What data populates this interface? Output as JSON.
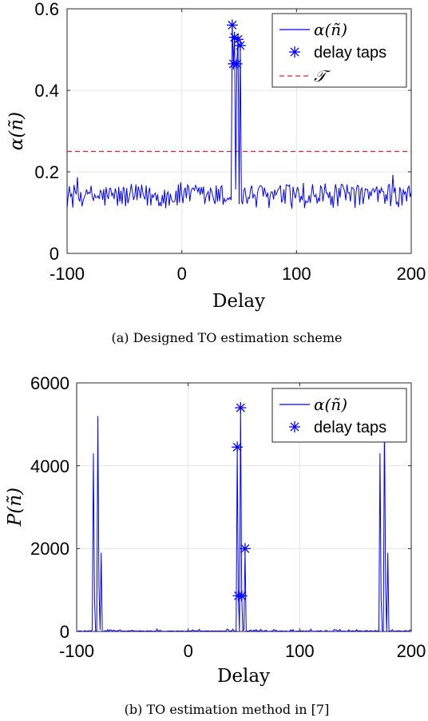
{
  "chart_data": [
    {
      "type": "line",
      "caption": "(a) Designed TO estimation scheme",
      "xlabel": "Delay",
      "ylabel": "α(ñ)",
      "xlim": [
        -100,
        200
      ],
      "ylim": [
        0,
        0.6
      ],
      "xticks": [
        -100,
        0,
        100,
        200
      ],
      "yticks": [
        0,
        0.2,
        0.4,
        0.6
      ],
      "xtick_labels": [
        "-100",
        "0",
        "100",
        "200"
      ],
      "ytick_labels": [
        "0",
        "0.2",
        "0.4",
        "0.6"
      ],
      "grid": true,
      "legend_position": "top-right",
      "legend": [
        "α(ñ)",
        "delay taps",
        "𝒯"
      ],
      "colors": {
        "line": "#0000ff",
        "markers": "#0000ff",
        "threshold": "#e8222c"
      },
      "threshold": 0.25,
      "noise_band": [
        0.08,
        0.2
      ],
      "delay_taps": [
        {
          "x": 44,
          "y": 0.56
        },
        {
          "x": 45,
          "y": 0.465
        },
        {
          "x": 46,
          "y": 0.53
        },
        {
          "x": 48,
          "y": 0.465
        },
        {
          "x": 49,
          "y": 0.525
        },
        {
          "x": 51,
          "y": 0.51
        }
      ]
    },
    {
      "type": "line",
      "caption": "(b) TO estimation method in [7]",
      "xlabel": "Delay",
      "ylabel": "P(ñ)",
      "xlim": [
        -100,
        200
      ],
      "ylim": [
        0,
        6000
      ],
      "xticks": [
        -100,
        0,
        100,
        200
      ],
      "yticks": [
        0,
        2000,
        4000,
        6000
      ],
      "xtick_labels": [
        "-100",
        "0",
        "100",
        "200"
      ],
      "ytick_labels": [
        "0",
        "2000",
        "4000",
        "6000"
      ],
      "grid": true,
      "legend_position": "top-right",
      "legend": [
        "α(ñ)",
        "delay taps"
      ],
      "colors": {
        "line": "#0000ff",
        "markers": "#0000ff"
      },
      "noise_band": [
        0,
        60
      ],
      "peaks": [
        {
          "x": -85,
          "y": 4300
        },
        {
          "x": -84,
          "y": 800
        },
        {
          "x": -81,
          "y": 5200
        },
        {
          "x": -80,
          "y": 1100
        },
        {
          "x": -78,
          "y": 1900
        },
        {
          "x": 172,
          "y": 4300
        },
        {
          "x": 173,
          "y": 800
        },
        {
          "x": 176,
          "y": 5200
        },
        {
          "x": 177,
          "y": 1100
        },
        {
          "x": 179,
          "y": 1900
        }
      ],
      "delay_taps": [
        {
          "x": 44,
          "y": 4450
        },
        {
          "x": 45,
          "y": 860
        },
        {
          "x": 47,
          "y": 5400
        },
        {
          "x": 48,
          "y": 860
        },
        {
          "x": 51,
          "y": 2000
        }
      ]
    }
  ]
}
